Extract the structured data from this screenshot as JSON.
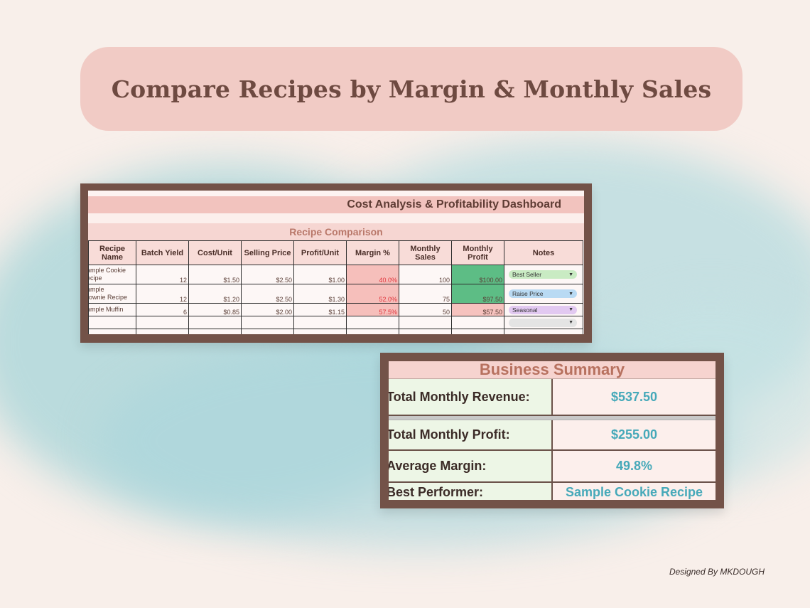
{
  "header": {
    "title": "Compare Recipes by Margin & Monthly Sales"
  },
  "dashboard": {
    "title": "Cost Analysis & Profitability Dashboard",
    "section": "Recipe Comparison",
    "columns": [
      "Recipe Name",
      "Batch Yield",
      "Cost/Unit",
      "Selling Price",
      "Profit/Unit",
      "Margin %",
      "Monthly Sales",
      "Monthly Profit",
      "Notes"
    ],
    "rows": [
      {
        "name_line1": "ample Cookie",
        "name_line2": "ecipe",
        "batch_yield": "12",
        "cost_unit": "$1.50",
        "selling_price": "$2.50",
        "profit_unit": "$1.00",
        "margin": "40.0%",
        "monthly_sales": "100",
        "monthly_profit": "$100.00",
        "note": "Best Seller",
        "note_color": "#c9ebc3",
        "profit_color": "#5dbd85"
      },
      {
        "name_line1": "ample",
        "name_line2": "rownie Recipe",
        "batch_yield": "12",
        "cost_unit": "$1.20",
        "selling_price": "$2.50",
        "profit_unit": "$1.30",
        "margin": "52.0%",
        "monthly_sales": "75",
        "monthly_profit": "$97.50",
        "note": "Raise Price",
        "note_color": "#b9daf3",
        "profit_color": "#5dbd85"
      },
      {
        "name_line1": "ample Muffin",
        "name_line2": "",
        "batch_yield": "6",
        "cost_unit": "$0.85",
        "selling_price": "$2.00",
        "profit_unit": "$1.15",
        "margin": "57.5%",
        "monthly_sales": "50",
        "monthly_profit": "$57.50",
        "note": "Seasonal",
        "note_color": "#e2c9f1",
        "profit_color": "#f6c2be"
      }
    ],
    "empty_note_color": "#e4e4e4"
  },
  "summary": {
    "title": "Business Summary",
    "items": [
      {
        "label": "Total Monthly Revenue:",
        "value": "$537.50"
      },
      {
        "label": "Total Monthly Profit:",
        "value": "$255.00"
      },
      {
        "label": "Average Margin:",
        "value": "49.8%"
      },
      {
        "label": "Best Performer:",
        "value": "Sample Cookie Recipe"
      }
    ]
  },
  "credit": "Designed By MKDOUGH"
}
